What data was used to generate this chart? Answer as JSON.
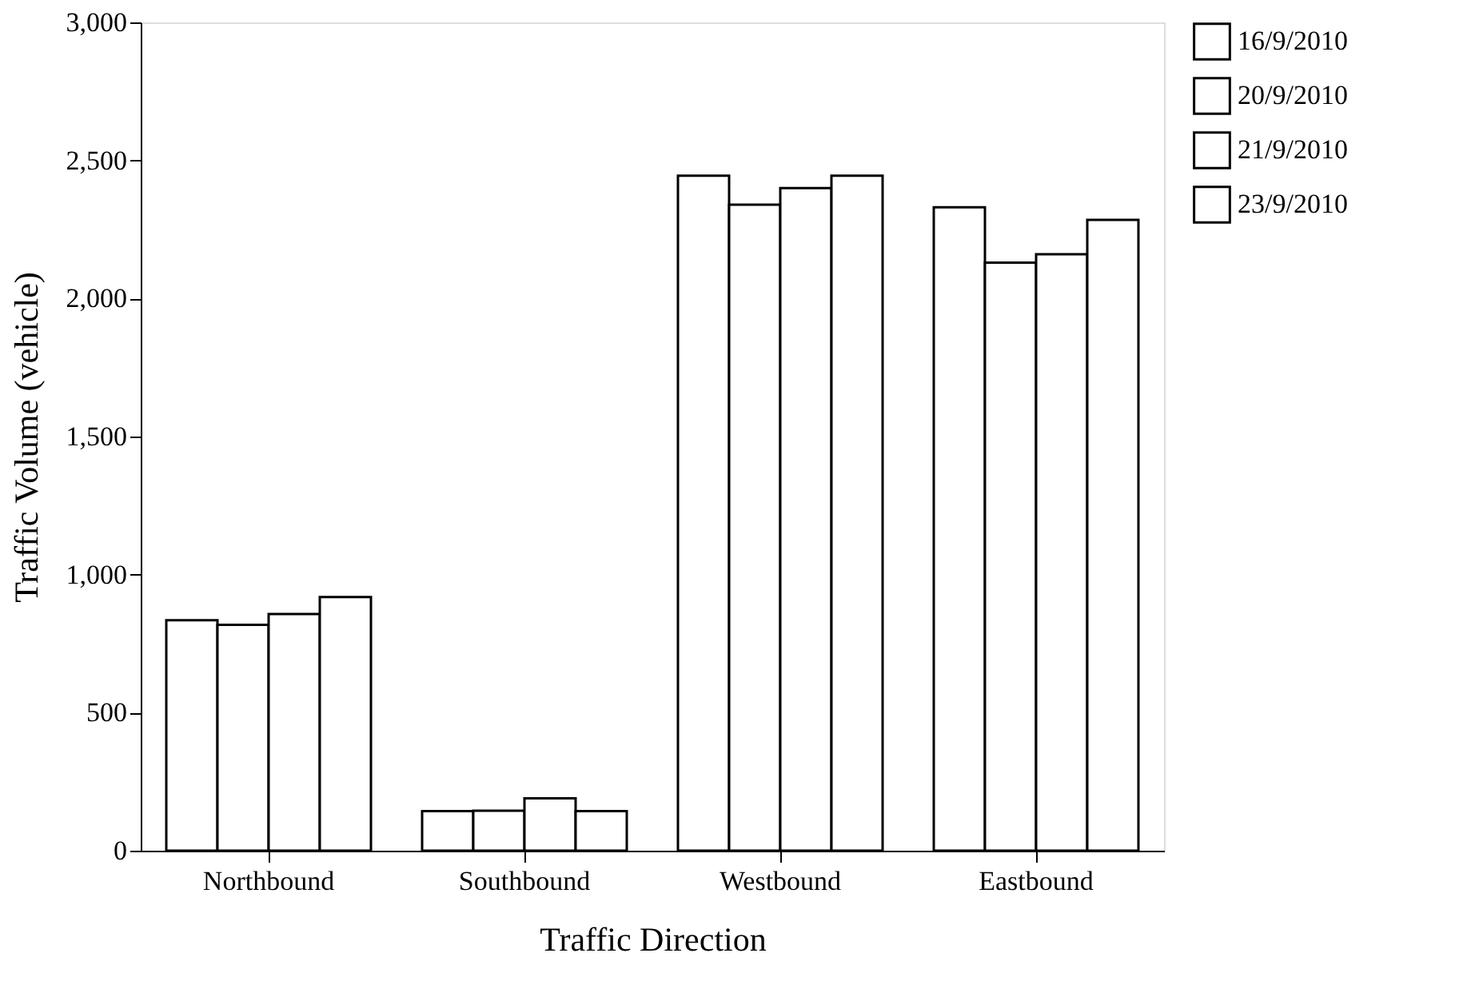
{
  "chart_data": {
    "type": "bar",
    "xlabel": "Traffic Direction",
    "ylabel": "Traffic Volume (vehicle)",
    "categories": [
      "Northbound",
      "Southbound",
      "Westbound",
      "Eastbound"
    ],
    "series": [
      {
        "name": "16/9/2010",
        "color": "#ffffff",
        "values": [
          835,
          143,
          2445,
          2330
        ]
      },
      {
        "name": "20/9/2010",
        "color": "#ffffff",
        "values": [
          818,
          145,
          2340,
          2130
        ]
      },
      {
        "name": "21/9/2010",
        "color": "#ffffff",
        "values": [
          857,
          190,
          2400,
          2160
        ]
      },
      {
        "name": "23/9/2010",
        "color": "#ffffff",
        "values": [
          919,
          143,
          2445,
          2285
        ]
      }
    ],
    "ylim": [
      0,
      3000
    ],
    "yticks": [
      0,
      500,
      {
        "value": 1000,
        "label": "1,000"
      },
      {
        "value": 1500,
        "label": "1,500"
      },
      {
        "value": 2000,
        "label": "2,000"
      },
      {
        "value": 2500,
        "label": "2,500"
      },
      {
        "value": 3000,
        "label": "3,000"
      }
    ],
    "grid": false,
    "legend": "right"
  }
}
